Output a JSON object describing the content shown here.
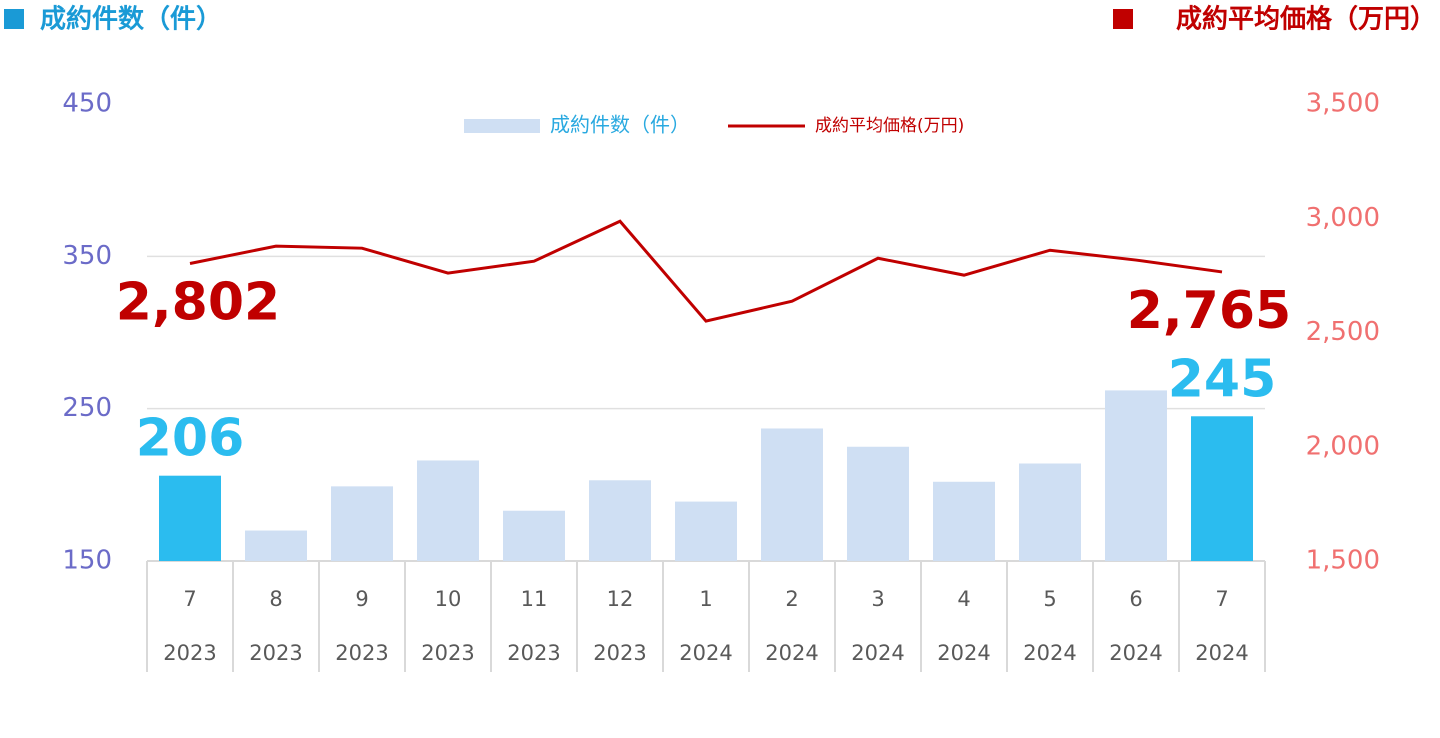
{
  "chart_data": {
    "type": "bar_line",
    "y_label": "成約件数（件）",
    "y2_label": "成約平均価格（万円）",
    "categories": [
      "7",
      "8",
      "9",
      "10",
      "11",
      "12",
      "1",
      "2",
      "3",
      "4",
      "5",
      "6",
      "7"
    ],
    "category_years": [
      "2023",
      "2023",
      "2023",
      "2023",
      "2023",
      "2023",
      "2024",
      "2024",
      "2024",
      "2024",
      "2024",
      "2024",
      "2024"
    ],
    "series": [
      {
        "name": "成約件数（件）",
        "type": "bar",
        "color": "#cfdff3",
        "colors": [
          "#2bbcef",
          "#cfdff3",
          "#cfdff3",
          "#cfdff3",
          "#cfdff3",
          "#cfdff3",
          "#cfdff3",
          "#cfdff3",
          "#cfdff3",
          "#cfdff3",
          "#cfdff3",
          "#cfdff3",
          "#2bbcef"
        ],
        "values": [
          206,
          170,
          199,
          216,
          183,
          203,
          189,
          237,
          225,
          202,
          214,
          262,
          245
        ],
        "value_labels": [
          "206",
          null,
          null,
          null,
          null,
          null,
          null,
          null,
          null,
          null,
          null,
          null,
          "245"
        ]
      },
      {
        "name": "成約平均価格(万円)",
        "type": "line",
        "axis": "y2",
        "color": "#c00000",
        "values": [
          2802,
          2878,
          2869,
          2760,
          2812,
          2987,
          2550,
          2637,
          2825,
          2751,
          2860,
          2817,
          2765
        ],
        "value_labels": [
          "2,802",
          null,
          null,
          null,
          null,
          null,
          null,
          null,
          null,
          null,
          null,
          null,
          "2,765"
        ]
      }
    ],
    "ylim": [
      150,
      450
    ],
    "yticks": [
      150,
      250,
      350,
      450
    ],
    "y2lim": [
      1500,
      3500
    ],
    "y2ticks": [
      {
        "value": 1500,
        "label": "1,500"
      },
      {
        "value": 2000,
        "label": "2,000"
      },
      {
        "value": 2500,
        "label": "2,500"
      },
      {
        "value": 3000,
        "label": "3,000"
      },
      {
        "value": 3500,
        "label": "3,500"
      }
    ],
    "grid": true,
    "legend": "top"
  }
}
